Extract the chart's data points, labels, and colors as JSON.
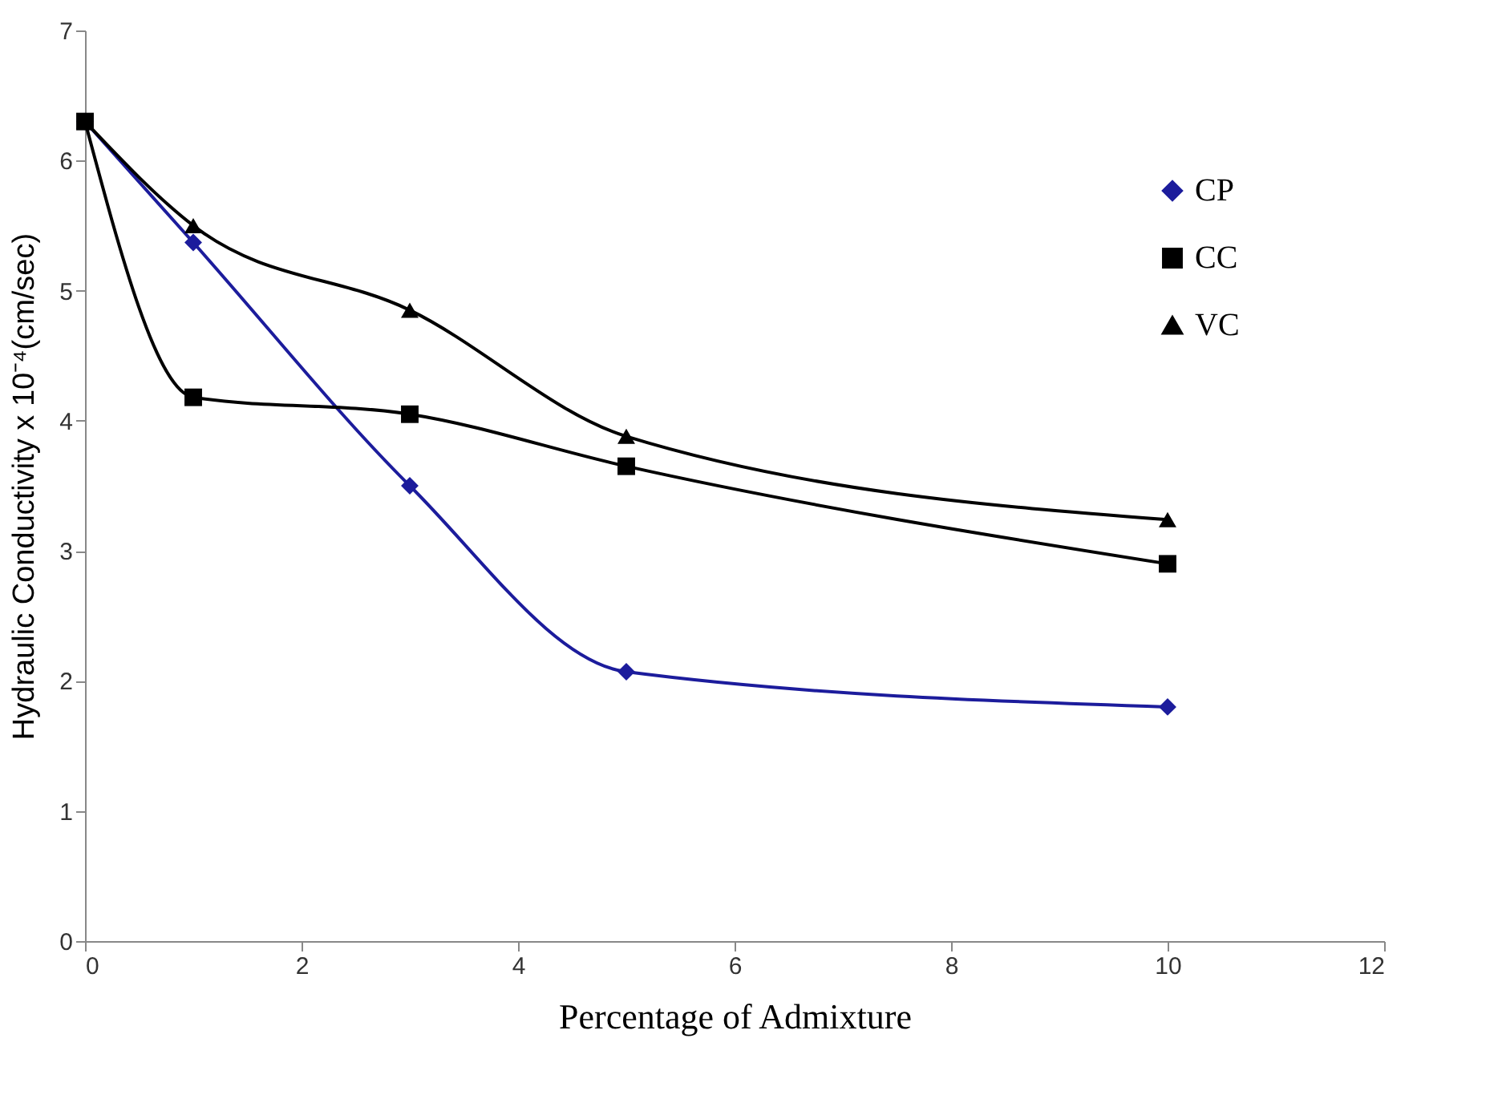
{
  "chart_data": {
    "type": "line",
    "xlabel": "Percentage of Admixture",
    "ylabel": "Hydraulic Conductivity  x 10⁻⁴(cm/sec)",
    "x": [
      0,
      1,
      3,
      5,
      10
    ],
    "series": [
      {
        "name": "CP",
        "color": "#1c1c9c",
        "marker": "diamond",
        "values": [
          6.3,
          5.37,
          3.5,
          2.07,
          1.8
        ]
      },
      {
        "name": "CC",
        "color": "#000000",
        "marker": "square",
        "values": [
          6.3,
          4.18,
          4.05,
          3.65,
          2.9
        ]
      },
      {
        "name": "VC",
        "color": "#000000",
        "marker": "triangle",
        "values": [
          6.3,
          5.5,
          4.85,
          3.88,
          3.24
        ]
      }
    ],
    "xlim": [
      0,
      12
    ],
    "xticks": [
      0,
      2,
      4,
      6,
      8,
      10,
      12
    ],
    "ylim": [
      0,
      7
    ],
    "yticks": [
      0,
      1,
      2,
      3,
      4,
      5,
      6,
      7
    ],
    "grid": false,
    "legend": "top right",
    "line_style": "solid"
  }
}
